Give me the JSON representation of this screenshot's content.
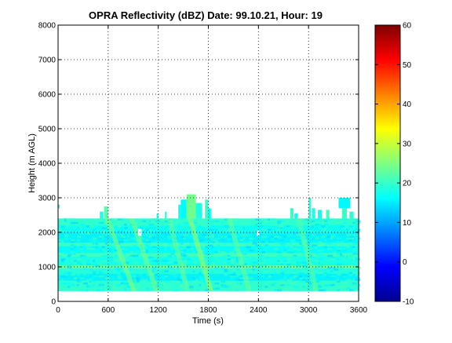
{
  "chart_data": {
    "type": "heatmap",
    "title": "OPRA Reflectivity (dBZ)  Date: 99.10.21, Hour: 19",
    "xlabel": "Time (s)",
    "ylabel": "Height (m AGL)",
    "xlim": [
      0,
      3600
    ],
    "ylim": [
      0,
      8000
    ],
    "x_ticks": [
      0,
      600,
      1200,
      1800,
      2400,
      3000,
      3600
    ],
    "y_ticks": [
      0,
      1000,
      2000,
      3000,
      4000,
      5000,
      6000,
      7000,
      8000
    ],
    "grid": true,
    "colorbar": {
      "min": -10,
      "max": 60,
      "ticks": [
        -10,
        0,
        10,
        20,
        30,
        40,
        50,
        60
      ],
      "colormap": "jet"
    },
    "data_region": {
      "base_height_m": 300,
      "layer_top_m": 2400,
      "background_dbz": 18,
      "layers": [
        {
          "y0": 300,
          "y1": 600,
          "dbz": 20
        },
        {
          "y0": 600,
          "y1": 800,
          "dbz": 15
        },
        {
          "y0": 800,
          "y1": 950,
          "dbz": 19
        },
        {
          "y0": 950,
          "y1": 1050,
          "dbz": 25
        },
        {
          "y0": 1050,
          "y1": 1300,
          "dbz": 18
        },
        {
          "y0": 1300,
          "y1": 1400,
          "dbz": 22
        },
        {
          "y0": 1400,
          "y1": 1600,
          "dbz": 16
        },
        {
          "y0": 1600,
          "y1": 1700,
          "dbz": 21
        },
        {
          "y0": 1700,
          "y1": 2000,
          "dbz": 15
        },
        {
          "y0": 2000,
          "y1": 2200,
          "dbz": 17
        },
        {
          "y0": 2200,
          "y1": 2400,
          "dbz": 20
        }
      ],
      "streaks": [
        {
          "t_top": 560,
          "t_bottom": 880,
          "dbz": 26
        },
        {
          "t_top": 850,
          "t_bottom": 1150,
          "dbz": 25
        },
        {
          "t_top": 1300,
          "t_bottom": 1520,
          "dbz": 24
        },
        {
          "t_top": 1550,
          "t_bottom": 1800,
          "dbz": 28
        },
        {
          "t_top": 2020,
          "t_bottom": 2260,
          "dbz": 24
        },
        {
          "t_top": 2850,
          "t_bottom": 3060,
          "dbz": 23
        }
      ],
      "cells_above_layer": [
        {
          "t0": 500,
          "t1": 540,
          "y0": 2400,
          "y1": 2600,
          "dbz": 18
        },
        {
          "t0": 550,
          "t1": 600,
          "y0": 2400,
          "y1": 2750,
          "dbz": 22
        },
        {
          "t0": 1180,
          "t1": 1200,
          "y0": 2400,
          "y1": 2550,
          "dbz": 17
        },
        {
          "t0": 1280,
          "t1": 1300,
          "y0": 2400,
          "y1": 2600,
          "dbz": 18
        },
        {
          "t0": 1440,
          "t1": 1470,
          "y0": 2400,
          "y1": 2800,
          "dbz": 17
        },
        {
          "t0": 1470,
          "t1": 1540,
          "y0": 2400,
          "y1": 2950,
          "dbz": 16
        },
        {
          "t0": 1540,
          "t1": 1650,
          "y0": 2400,
          "y1": 3100,
          "dbz": 24
        },
        {
          "t0": 1650,
          "t1": 1720,
          "y0": 2400,
          "y1": 2850,
          "dbz": 18
        },
        {
          "t0": 1760,
          "t1": 1800,
          "y0": 2400,
          "y1": 2950,
          "dbz": 20
        },
        {
          "t0": 1800,
          "t1": 1830,
          "y0": 2400,
          "y1": 2700,
          "dbz": 16
        },
        {
          "t0": 2780,
          "t1": 2820,
          "y0": 2400,
          "y1": 2700,
          "dbz": 20
        },
        {
          "t0": 2830,
          "t1": 2870,
          "y0": 2400,
          "y1": 2550,
          "dbz": 17
        },
        {
          "t0": 3000,
          "t1": 3030,
          "y0": 2400,
          "y1": 3000,
          "dbz": 19
        },
        {
          "t0": 3040,
          "t1": 3080,
          "y0": 2400,
          "y1": 2700,
          "dbz": 18
        },
        {
          "t0": 3110,
          "t1": 3160,
          "y0": 2400,
          "y1": 2650,
          "dbz": 17
        },
        {
          "t0": 3210,
          "t1": 3250,
          "y0": 2400,
          "y1": 2650,
          "dbz": 21
        },
        {
          "t0": 3360,
          "t1": 3500,
          "y0": 2700,
          "y1": 3000,
          "dbz": 16
        },
        {
          "t0": 3400,
          "t1": 3460,
          "y0": 2400,
          "y1": 2700,
          "dbz": 20
        },
        {
          "t0": 3490,
          "t1": 3540,
          "y0": 2400,
          "y1": 2600,
          "dbz": 19
        },
        {
          "t0": 0,
          "t1": 20,
          "y0": 2700,
          "y1": 2800,
          "dbz": 18
        }
      ],
      "gaps": [
        {
          "t0": 960,
          "t1": 1000,
          "y0": 1900,
          "y1": 2100
        },
        {
          "t0": 2380,
          "t1": 2410,
          "y0": 1900,
          "y1": 2050
        }
      ]
    }
  }
}
